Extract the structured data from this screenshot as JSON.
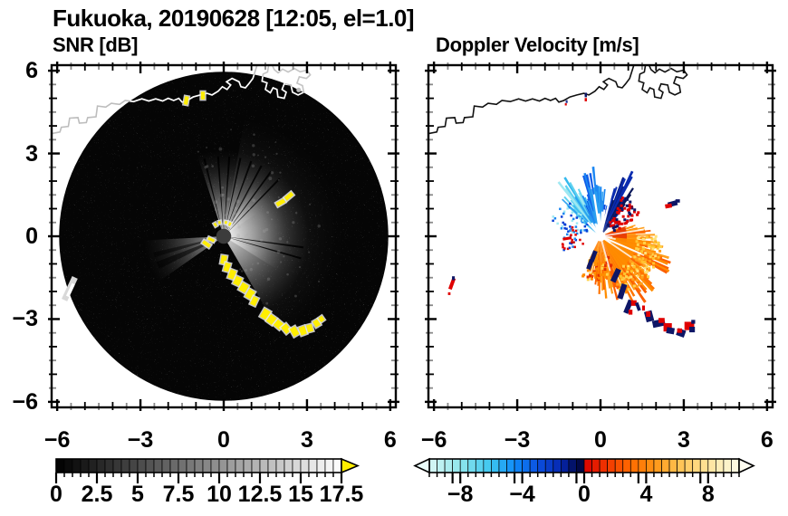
{
  "title": "Fukuoka, 20190628 [12:05, el=1.0]",
  "panels": {
    "snr": {
      "label": "SNR [dB]"
    },
    "vel": {
      "label": "Doppler Velocity [m/s]"
    }
  },
  "axes": {
    "xlim": [
      -6.2,
      6.2
    ],
    "ylim": [
      -6.2,
      6.2
    ],
    "x_tick_values": [
      -6,
      -3,
      0,
      3,
      6
    ],
    "x_tick_labels": [
      "−6",
      "−3",
      "0",
      "3",
      "6"
    ],
    "y_tick_values": [
      6,
      3,
      0,
      -3,
      -6
    ],
    "y_tick_labels": [
      "6",
      "3",
      "0",
      "−3",
      "−6"
    ],
    "minor_step": 0.5,
    "minor_tick_color": "#8a8a8a"
  },
  "colorbars": {
    "snr": {
      "min": 0,
      "max": 17.5,
      "seg": 0.5,
      "tick_values": [
        0,
        2.5,
        5,
        7.5,
        10,
        12.5,
        15,
        17.5
      ],
      "tick_labels": [
        "0",
        "2.5",
        "5",
        "7.5",
        "10",
        "12.5",
        "15",
        "17.5"
      ],
      "arrow_color": "#ffee00"
    },
    "vel": {
      "min": -10,
      "max": 10,
      "seg": 0.5,
      "tick_values": [
        -8,
        -4,
        0,
        4,
        8
      ],
      "tick_labels": [
        "−8",
        "−4",
        "0",
        "4",
        "8"
      ],
      "left_arrow": "#eafcfa",
      "right_arrow": "#fffdf0",
      "neg_anchors": [
        [
          -10,
          "#d9f7f5"
        ],
        [
          -8,
          "#8fe6ec"
        ],
        [
          -6,
          "#3cc6f0"
        ],
        [
          -4.5,
          "#0f8bf8"
        ],
        [
          -3,
          "#0b50e0"
        ],
        [
          -1.5,
          "#0627b0"
        ],
        [
          -0.5,
          "#020c52"
        ],
        [
          0,
          "#01063a"
        ]
      ],
      "pos_anchors": [
        [
          0,
          "#d80000"
        ],
        [
          1.5,
          "#f23800"
        ],
        [
          3,
          "#ff6a00"
        ],
        [
          4.5,
          "#ff9414"
        ],
        [
          6,
          "#ffbf4d"
        ],
        [
          7.5,
          "#ffdc88"
        ],
        [
          9,
          "#fcf0c0"
        ],
        [
          10,
          "#fdfbe8"
        ]
      ]
    }
  },
  "chart_data": {
    "type": "heatmap",
    "description": "Dual-panel Doppler lidar/radar PPI scan at Fukuoka, 2019-06-28 12:05, elevation 1.0 deg. Left: SNR [dB] 0-17.5 grayscale on black scan disk of radius ~5.9 km. Right: Doppler velocity [m/s] -10..10, blue fan (toward) to the north-northwest of the radar, orange fan (away) to the east-south, aliased navy/red patches along a convergence arc southeast of the radar.",
    "radar_center": [
      0,
      0
    ],
    "scan_radius": 5.93,
    "coastline": [
      [
        -6.2,
        3.72
      ],
      [
        -5.9,
        3.78
      ],
      [
        -5.85,
        3.95
      ],
      [
        -5.6,
        3.98
      ],
      [
        -5.55,
        4.28
      ],
      [
        -5.25,
        4.3
      ],
      [
        -5.2,
        4.1
      ],
      [
        -4.95,
        4.12
      ],
      [
        -4.9,
        4.3
      ],
      [
        -4.6,
        4.33
      ],
      [
        -4.55,
        4.72
      ],
      [
        -4.25,
        4.68
      ],
      [
        -4.05,
        4.82
      ],
      [
        -3.75,
        4.78
      ],
      [
        -3.55,
        4.92
      ],
      [
        -3.25,
        4.88
      ],
      [
        -2.95,
        4.98
      ],
      [
        -2.7,
        4.9
      ],
      [
        -2.45,
        4.98
      ],
      [
        -2.2,
        4.9
      ],
      [
        -2.0,
        5.0
      ],
      [
        -1.8,
        4.92
      ],
      [
        -1.62,
        5.0
      ],
      [
        -1.5,
        4.86
      ],
      [
        -1.32,
        4.92
      ],
      [
        -1.1,
        5.05
      ],
      [
        -0.85,
        5.12
      ],
      [
        -0.6,
        5.18
      ],
      [
        -0.42,
        5.12
      ],
      [
        -0.2,
        5.26
      ],
      [
        -0.05,
        5.42
      ],
      [
        0.12,
        5.32
      ],
      [
        0.25,
        5.48
      ],
      [
        0.1,
        5.6
      ],
      [
        0.3,
        5.72
      ],
      [
        0.55,
        5.6
      ],
      [
        0.62,
        5.42
      ],
      [
        0.78,
        5.38
      ],
      [
        0.9,
        5.52
      ],
      [
        1.05,
        5.72
      ],
      [
        1.2,
        6.2
      ]
    ],
    "harbor": [
      [
        1.62,
        6.2
      ],
      [
        1.58,
        5.95
      ],
      [
        1.42,
        5.88
      ],
      [
        1.38,
        5.62
      ],
      [
        1.56,
        5.56
      ],
      [
        1.5,
        5.32
      ],
      [
        1.68,
        5.2
      ],
      [
        1.78,
        5.38
      ],
      [
        1.92,
        5.32
      ],
      [
        1.95,
        5.05
      ],
      [
        2.18,
        5.0
      ],
      [
        2.25,
        5.22
      ],
      [
        2.1,
        5.32
      ],
      [
        2.18,
        5.52
      ],
      [
        2.42,
        5.48
      ],
      [
        2.48,
        5.22
      ],
      [
        2.68,
        5.12
      ],
      [
        2.88,
        5.22
      ],
      [
        2.84,
        5.46
      ],
      [
        2.64,
        5.55
      ],
      [
        2.72,
        5.78
      ],
      [
        2.98,
        5.72
      ],
      [
        3.12,
        5.85
      ],
      [
        3.0,
        6.02
      ],
      [
        2.75,
        5.96
      ],
      [
        2.55,
        6.08
      ],
      [
        2.32,
        5.95
      ],
      [
        2.12,
        6.06
      ],
      [
        1.96,
        5.92
      ],
      [
        1.82,
        6.04
      ],
      [
        1.75,
        6.2
      ]
    ],
    "snr_features": {
      "haze_sectors": [
        [
          -18,
          150,
          3.1,
          0.42
        ],
        [
          30,
          122,
          2.3,
          0.5
        ],
        [
          10,
          150,
          4.3,
          0.14
        ],
        [
          55,
          112,
          1.5,
          0.5
        ]
      ],
      "wsw_wedge": [
        235,
        267,
        2.9,
        0.3
      ],
      "dark_spokes": [
        -14,
        -4,
        4,
        12,
        20,
        28,
        36,
        44,
        98,
        106
      ],
      "center_disc_radius": 0.27,
      "yellow_patches": [
        [
          -0.62,
          -0.28,
          0.3,
          0.13,
          35
        ],
        [
          -0.45,
          -0.12,
          0.24,
          0.1,
          25
        ],
        [
          -0.3,
          0.42,
          0.13,
          0.08,
          60
        ],
        [
          -0.15,
          0.5,
          0.1,
          0.08,
          80
        ],
        [
          0.08,
          0.5,
          0.1,
          0.08,
          100
        ],
        [
          0.22,
          0.44,
          0.13,
          0.08,
          115
        ],
        [
          0.0,
          -0.85,
          0.2,
          0.3,
          10
        ],
        [
          0.12,
          -1.12,
          0.2,
          0.3,
          15
        ],
        [
          0.3,
          -1.38,
          0.22,
          0.32,
          20
        ],
        [
          0.5,
          -1.62,
          0.24,
          0.3,
          25
        ],
        [
          0.72,
          -1.86,
          0.26,
          0.3,
          30
        ],
        [
          0.95,
          -2.1,
          0.24,
          0.32,
          30
        ],
        [
          1.1,
          -2.35,
          0.2,
          0.3,
          25
        ],
        [
          1.5,
          -2.82,
          0.26,
          0.34,
          30
        ],
        [
          1.72,
          -3.02,
          0.26,
          0.3,
          35
        ],
        [
          1.98,
          -3.2,
          0.28,
          0.26,
          40
        ],
        [
          2.25,
          -3.35,
          0.3,
          0.24,
          50
        ],
        [
          2.55,
          -3.45,
          0.32,
          0.22,
          60
        ],
        [
          2.85,
          -3.42,
          0.3,
          0.22,
          70
        ],
        [
          3.1,
          -3.33,
          0.26,
          0.2,
          75
        ],
        [
          3.35,
          -3.15,
          0.24,
          0.2,
          60
        ],
        [
          3.52,
          -3.0,
          0.18,
          0.16,
          55
        ],
        [
          2.05,
          1.22,
          0.32,
          0.15,
          -30
        ],
        [
          2.35,
          1.45,
          0.32,
          0.15,
          -40
        ],
        [
          -1.35,
          4.92,
          0.14,
          0.3,
          10
        ],
        [
          -0.75,
          5.1,
          0.14,
          0.28,
          0
        ]
      ],
      "rim_blob": [
        -5.55,
        -1.9,
        -65
      ]
    },
    "vel_features": {
      "blue_fan": {
        "az1": -52,
        "az2": 42,
        "rmax": 1.85
      },
      "orange_fan": {
        "az1": 66,
        "az2": 206,
        "rmax": 2.0
      },
      "center_hole_radius": 0.18,
      "navy": "#0e1666",
      "red": "#e00000",
      "patches": [
        [
          -1.2,
          -0.08,
          0.32,
          0.1,
          -10,
          "#e00000"
        ],
        [
          -1.0,
          -0.22,
          0.16,
          0.08,
          0,
          "#c00000"
        ],
        [
          -0.33,
          -0.92,
          0.11,
          0.38,
          25,
          "#0e1666"
        ],
        [
          -0.25,
          -0.72,
          0.16,
          0.4,
          20,
          "#0e1666"
        ],
        [
          -0.38,
          -1.02,
          0.16,
          0.36,
          20,
          "#0e1666"
        ],
        [
          0.55,
          -1.42,
          0.2,
          0.5,
          25,
          "#0e1666"
        ],
        [
          0.78,
          -2.0,
          0.2,
          0.55,
          18,
          "#0e1666"
        ],
        [
          1.0,
          -2.55,
          0.18,
          0.5,
          22,
          "#0e1666"
        ],
        [
          1.2,
          -2.42,
          0.2,
          0.2,
          0,
          "#e00000"
        ],
        [
          1.08,
          -2.75,
          0.14,
          0.18,
          0,
          "#e00000"
        ],
        [
          2.6,
          1.18,
          0.34,
          0.18,
          -15,
          "#0e1666"
        ],
        [
          2.45,
          1.1,
          0.24,
          0.15,
          -10,
          "#e00000"
        ],
        [
          2.78,
          1.28,
          0.16,
          0.12,
          0,
          "#0e1666"
        ],
        [
          -5.35,
          -1.72,
          0.13,
          0.42,
          20,
          "#e00000"
        ],
        [
          -5.3,
          -1.52,
          0.1,
          0.14,
          0,
          "#0e1666"
        ],
        [
          -5.45,
          -2.08,
          0.09,
          0.1,
          0,
          "#e00000"
        ],
        [
          -0.53,
          5.12,
          0.08,
          0.16,
          0,
          "#0e1666"
        ],
        [
          -0.53,
          4.95,
          0.08,
          0.12,
          0,
          "#e00000"
        ],
        [
          -1.22,
          4.88,
          0.07,
          0.1,
          0,
          "#203090"
        ],
        [
          -1.25,
          4.78,
          0.07,
          0.08,
          0,
          "#e00000"
        ],
        [
          1.35,
          -2.55,
          0.12,
          0.3,
          -20,
          "#0e1666"
        ],
        [
          1.55,
          -2.6,
          0.1,
          0.18,
          0,
          "#e00000"
        ],
        [
          1.75,
          -2.9,
          0.28,
          0.38,
          -15,
          "#0e1666"
        ],
        [
          1.72,
          -2.82,
          0.16,
          0.2,
          0,
          "#e00000"
        ],
        [
          2.1,
          -3.15,
          0.45,
          0.25,
          -12,
          "#0e1666"
        ],
        [
          2.2,
          -3.05,
          0.22,
          0.18,
          0,
          "#e00000"
        ],
        [
          2.42,
          -3.3,
          0.3,
          0.3,
          0,
          "#e00000"
        ],
        [
          2.52,
          -3.42,
          0.28,
          0.22,
          10,
          "#0e1666"
        ],
        [
          2.9,
          -3.5,
          0.3,
          0.26,
          20,
          "#0e1666"
        ],
        [
          2.85,
          -3.42,
          0.18,
          0.16,
          0,
          "#e00000"
        ],
        [
          3.2,
          -3.25,
          0.35,
          0.3,
          0,
          "#e00000"
        ],
        [
          3.3,
          -3.38,
          0.2,
          0.2,
          0,
          "#0e1666"
        ],
        [
          3.34,
          -3.1,
          0.14,
          0.14,
          0,
          "#0e1666"
        ]
      ]
    }
  }
}
